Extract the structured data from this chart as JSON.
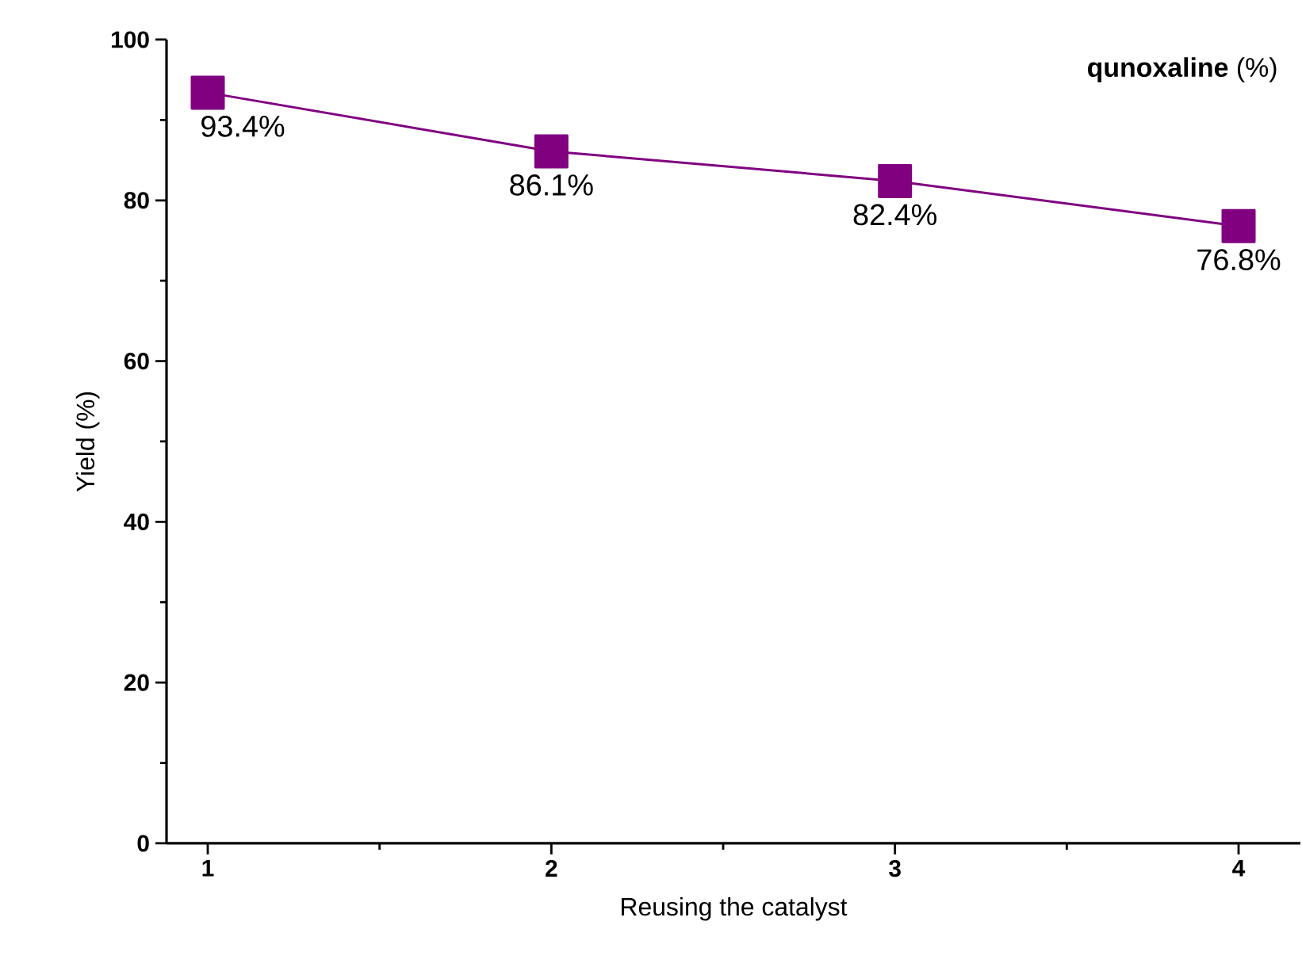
{
  "chart_data": {
    "type": "line",
    "xlabel": "Reusing the catalyst",
    "ylabel": "Yield (%)",
    "annotations": [
      "**qunoxaline** (%)"
    ],
    "x": [
      1,
      2,
      3,
      4
    ],
    "values": [
      93.4,
      86.1,
      82.4,
      76.8
    ],
    "value_labels": [
      "93.4%",
      "86.1%",
      "82.4%",
      "76.8%"
    ],
    "color": "#800080",
    "marker": "square",
    "line_style": "solid",
    "xlim": [
      0.88,
      4.18
    ],
    "xticks": [
      1,
      2,
      3,
      4
    ],
    "ylim": [
      0,
      100
    ],
    "yticks": [
      0,
      20,
      40,
      60,
      80,
      100
    ],
    "grid": false
  }
}
